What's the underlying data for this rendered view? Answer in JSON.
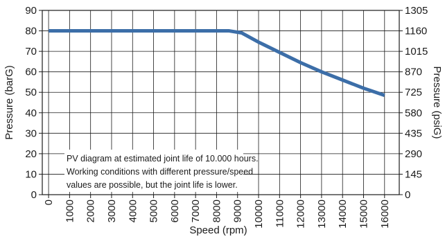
{
  "chart_data": {
    "type": "line",
    "title": "",
    "xlabel": "Speed (rpm)",
    "ylabel": "Pressure (barG)",
    "ylabel_right": "Pressure (psiG)",
    "xlim": [
      -300,
      16700
    ],
    "ylim": [
      0,
      90
    ],
    "grid": true,
    "x_ticks": [
      "0",
      "1000",
      "2000",
      "3000",
      "4000",
      "5000",
      "6000",
      "7000",
      "8000",
      "9000",
      "10000",
      "11000",
      "12000",
      "13000",
      "14000",
      "15000",
      "16000"
    ],
    "y_ticks_left": [
      "0",
      "10",
      "20",
      "30",
      "40",
      "50",
      "60",
      "70",
      "80",
      "90"
    ],
    "y_ticks_right": [
      "0",
      "145",
      "290",
      "435",
      "580",
      "725",
      "870",
      "1015",
      "1160",
      "1305"
    ],
    "series": [
      {
        "color": "#3c6ea8",
        "points": [
          [
            0,
            80
          ],
          [
            8000,
            80
          ],
          [
            8600,
            80
          ],
          [
            9200,
            79
          ],
          [
            10000,
            74.5
          ],
          [
            11000,
            69.5
          ],
          [
            12000,
            64.5
          ],
          [
            13000,
            60
          ],
          [
            14000,
            56
          ],
          [
            15000,
            52
          ],
          [
            16000,
            48.5
          ]
        ]
      }
    ],
    "annotation": [
      "PV diagram at estimated joint life of 10.000 hours.",
      "Working conditions with different pressure/speed",
      "values are possible, but the joint life is lower."
    ]
  }
}
